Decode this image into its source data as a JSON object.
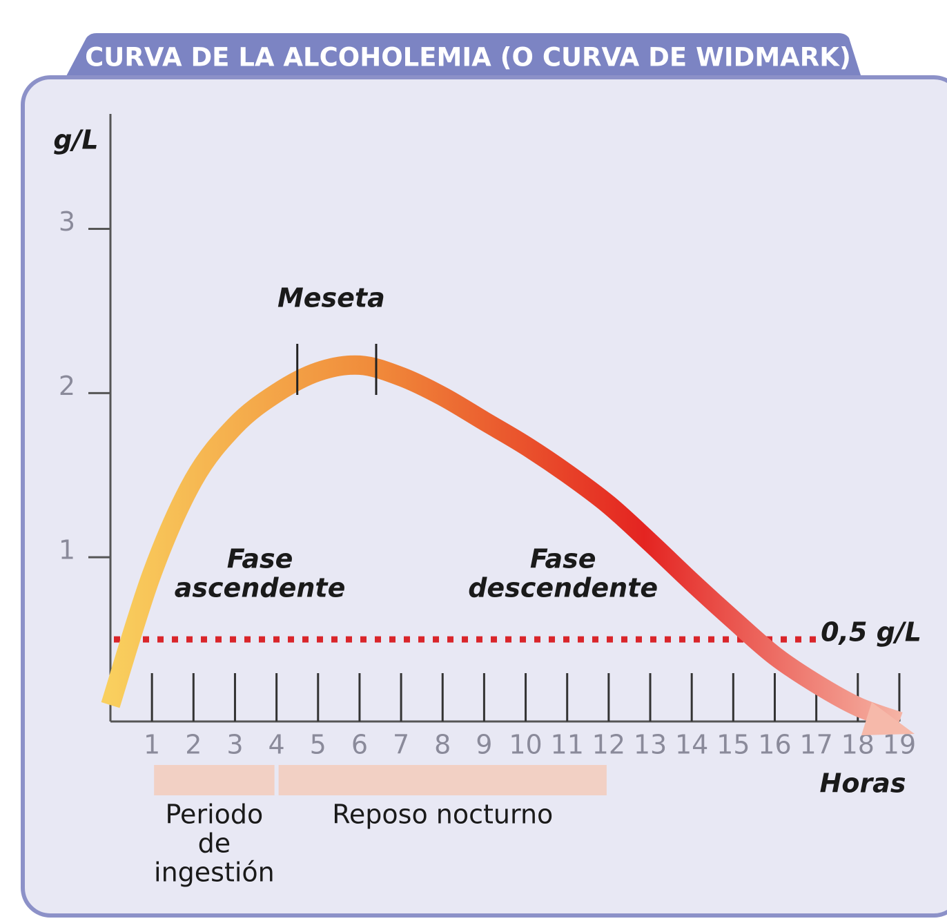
{
  "chart_data": {
    "type": "line",
    "title": "CURVA DE LA ALCOHOLEMIA (O CURVA DE WIDMARK)",
    "y_label": "g/L",
    "x_label": "Horas",
    "x": [
      0,
      1,
      2,
      3,
      4,
      5,
      6,
      7,
      8,
      9,
      10,
      11,
      12,
      13,
      14,
      15,
      16,
      17,
      18,
      19
    ],
    "series": [
      {
        "colors": [
          "#f9cf5e",
          "#f08a3a",
          "#e42421",
          "#f6b9aa"
        ],
        "values": [
          0.1,
          0.9,
          1.47,
          1.8,
          2.0,
          2.13,
          2.17,
          2.1,
          1.98,
          1.83,
          1.68,
          1.51,
          1.32,
          1.09,
          0.85,
          0.62,
          0.4,
          0.23,
          0.09,
          0
        ]
      }
    ],
    "xlim": [
      0,
      19.3
    ],
    "ylim": [
      0,
      3.7
    ],
    "xticks": [
      1,
      2,
      3,
      4,
      5,
      6,
      7,
      8,
      9,
      10,
      11,
      12,
      13,
      14,
      15,
      16,
      17,
      18,
      19
    ],
    "yticks": [
      1,
      2,
      3
    ],
    "threshold": {
      "value": 0.5,
      "label": "0,5 g/L",
      "color": "#d9252a"
    },
    "plateau": {
      "label": "Meseta",
      "start": 4.5,
      "end": 6.4
    },
    "phases": [
      {
        "lines": [
          "Fase",
          "ascendente"
        ],
        "x": 3.6,
        "y": 0.98
      },
      {
        "lines": [
          "Fase",
          "descendente"
        ],
        "x": 10.9,
        "y": 0.98
      }
    ],
    "periods": [
      {
        "lines": [
          "Periodo",
          "de",
          "ingestión"
        ],
        "start": 1,
        "end": 4,
        "color": "#f2d0c4"
      },
      {
        "lines": [
          "Reposo nocturno"
        ],
        "start": 4,
        "end": 12,
        "color": "#f2d0c4"
      }
    ]
  }
}
